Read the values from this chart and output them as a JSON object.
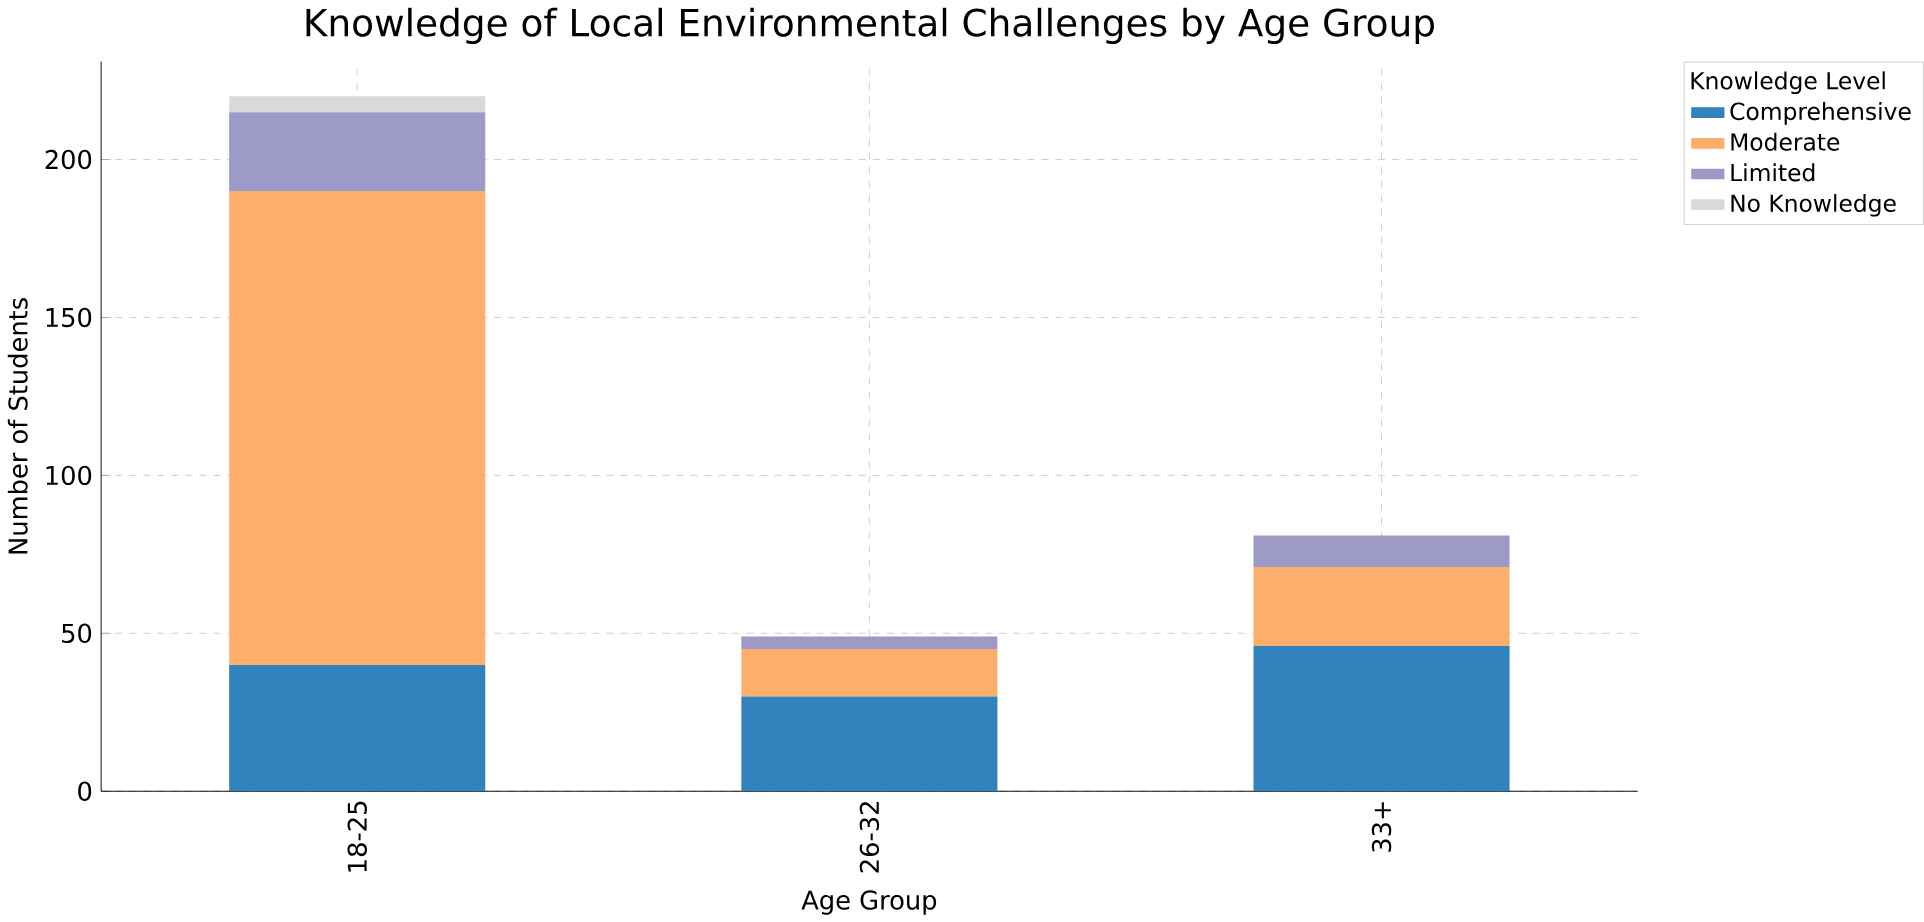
{
  "chart_data": {
    "type": "bar",
    "stacked": true,
    "title": "Knowledge of Local Environmental Challenges by Age Group",
    "xlabel": "Age Group",
    "ylabel": "Number of Students",
    "legend_title": "Knowledge Level",
    "legend": "top right",
    "grid": true,
    "categories": [
      "18-25",
      "26-32",
      "33+"
    ],
    "series": [
      {
        "name": "Comprehensive",
        "color": "#3182bd",
        "values": [
          40,
          30,
          46
        ]
      },
      {
        "name": "Moderate",
        "color": "#fdae6b",
        "values": [
          150,
          15,
          25
        ]
      },
      {
        "name": "Limited",
        "color": "#9e9ac8",
        "values": [
          25,
          4,
          10
        ]
      },
      {
        "name": "No Knowledge",
        "color": "#d9d9d9",
        "values": [
          5,
          0,
          0
        ]
      }
    ],
    "ylim": [
      0,
      231
    ],
    "yticks": [
      0,
      50,
      100,
      150,
      200
    ]
  }
}
